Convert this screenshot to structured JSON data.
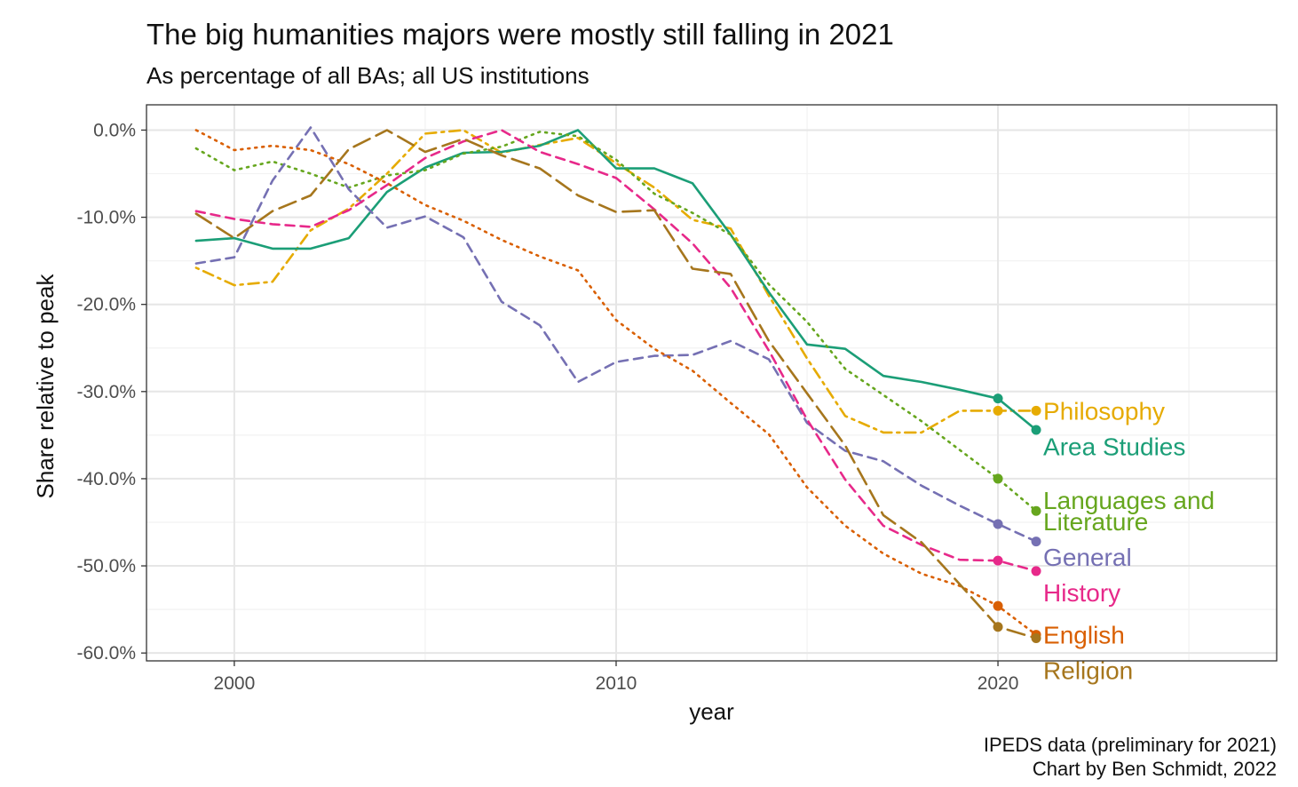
{
  "chart_data": {
    "type": "line",
    "title": "The big humanities majors were mostly still falling in 2021",
    "subtitle": "As percentage of all BAs; all US institutions",
    "xlabel": "year",
    "ylabel": "Share relative to peak",
    "xlim": [
      1997.7,
      2027.3
    ],
    "ylim": [
      -60.9,
      2.9
    ],
    "x_ticks": [
      2000,
      2010,
      2020
    ],
    "y_ticks": [
      0,
      -10,
      -20,
      -30,
      -40,
      -50,
      -60
    ],
    "y_tick_labels": [
      "0.0%",
      "-10.0%",
      "-20.0%",
      "-30.0%",
      "-40.0%",
      "-50.0%",
      "-60.0%"
    ],
    "grid": true,
    "legend": "direct labels at line ends (right)",
    "caption_lines": [
      "IPEDS data (preliminary for 2021)",
      "Chart by Ben Schmidt, 2022"
    ],
    "x": [
      1999,
      2000,
      2001,
      2002,
      2003,
      2004,
      2005,
      2006,
      2007,
      2008,
      2009,
      2010,
      2011,
      2012,
      2013,
      2014,
      2015,
      2016,
      2017,
      2018,
      2019,
      2020,
      2021
    ],
    "series": [
      {
        "name": "Philosophy",
        "color": "#e6ab02",
        "dash": "dotdash",
        "values": [
          -15.8,
          -17.8,
          -17.4,
          -11.5,
          -9.0,
          -5.0,
          -0.4,
          0.0,
          -2.6,
          -1.7,
          -0.9,
          -3.8,
          -6.6,
          -10.3,
          -11.3,
          -19.0,
          -26.2,
          -32.8,
          -34.7,
          -34.7,
          -32.2,
          -32.2,
          -32.2
        ]
      },
      {
        "name": "Area Studies",
        "color": "#1b9e77",
        "dash": "solid",
        "values": [
          -12.7,
          -12.4,
          -13.6,
          -13.6,
          -12.4,
          -7.1,
          -4.3,
          -2.6,
          -2.5,
          -1.8,
          0.0,
          -4.4,
          -4.4,
          -6.1,
          -12.0,
          -18.6,
          -24.6,
          -25.1,
          -28.2,
          -28.9,
          -29.8,
          -30.8,
          -34.4
        ]
      },
      {
        "name": "Languages and\nLiterature",
        "color": "#66a61e",
        "dash": "dotted",
        "values": [
          -2.1,
          -4.6,
          -3.6,
          -5.0,
          -6.6,
          -5.2,
          -4.6,
          -2.7,
          -1.9,
          -0.2,
          -0.7,
          -3.4,
          -7.3,
          -9.5,
          -12.0,
          -17.7,
          -22.0,
          -27.4,
          -30.4,
          -33.4,
          -36.7,
          -40.0,
          -43.7
        ]
      },
      {
        "name": "General",
        "color": "#7570b3",
        "dash": "dashed",
        "values": [
          -15.3,
          -14.6,
          -5.8,
          0.3,
          -6.8,
          -11.2,
          -9.9,
          -12.3,
          -19.7,
          -22.4,
          -28.9,
          -26.6,
          -25.9,
          -25.8,
          -24.2,
          -26.3,
          -33.6,
          -36.8,
          -38.0,
          -40.8,
          -43.1,
          -45.2,
          -47.2
        ]
      },
      {
        "name": "History",
        "color": "#e7298a",
        "dash": "dashed",
        "values": [
          -9.3,
          -10.2,
          -10.8,
          -11.1,
          -9.2,
          -6.3,
          -3.2,
          -1.3,
          0.0,
          -2.5,
          -3.9,
          -5.5,
          -9.1,
          -13.0,
          -18.1,
          -25.3,
          -33.2,
          -40.1,
          -45.4,
          -47.6,
          -49.3,
          -49.4,
          -50.6
        ]
      },
      {
        "name": "English",
        "color": "#d95f02",
        "dash": "dotted",
        "values": [
          0.0,
          -2.3,
          -1.8,
          -2.3,
          -3.9,
          -6.1,
          -8.6,
          -10.4,
          -12.6,
          -14.5,
          -16.1,
          -21.8,
          -25.1,
          -27.6,
          -31.3,
          -34.9,
          -41.0,
          -45.4,
          -48.6,
          -50.9,
          -52.3,
          -54.6,
          -57.9
        ]
      },
      {
        "name": "Religion",
        "color": "#a6761d",
        "dash": "longdash",
        "values": [
          -9.6,
          -12.4,
          -9.3,
          -7.5,
          -2.2,
          0.0,
          -2.5,
          -1.0,
          -2.9,
          -4.4,
          -7.5,
          -9.4,
          -9.2,
          -15.9,
          -16.5,
          -24.2,
          -30.2,
          -36.2,
          -44.2,
          -47.3,
          -52.1,
          -57.0,
          -58.3
        ]
      }
    ]
  }
}
